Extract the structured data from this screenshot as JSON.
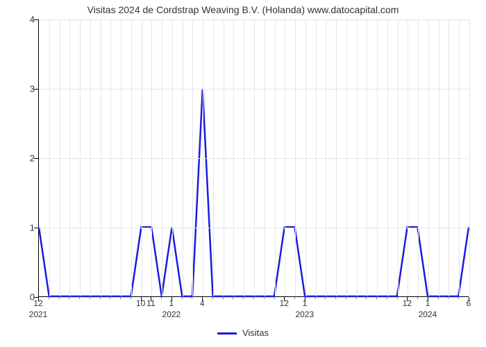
{
  "chart": {
    "type": "line",
    "title": "Visitas 2024 de Cordstrap Weaving B.V. (Holanda) www.datocapital.com",
    "title_fontsize": 14,
    "background_color": "#ffffff",
    "grid_color": "#e5e5e5",
    "axis_color": "#000000",
    "line_color": "#1a1adf",
    "line_width": 2.5,
    "y": {
      "min": 0,
      "max": 4,
      "ticks": [
        0,
        1,
        2,
        3,
        4
      ],
      "label_fontsize": 13
    },
    "x": {
      "n_minor": 42,
      "major_ticks": [
        {
          "idx": 0,
          "label": "12",
          "year": "2021"
        },
        {
          "idx": 10,
          "label": "10"
        },
        {
          "idx": 11,
          "label": "11"
        },
        {
          "idx": 13,
          "label": "1",
          "year": "2022"
        },
        {
          "idx": 16,
          "label": "4"
        },
        {
          "idx": 24,
          "label": "12"
        },
        {
          "idx": 26,
          "label": "1",
          "year": "2023"
        },
        {
          "idx": 36,
          "label": "12"
        },
        {
          "idx": 38,
          "label": "1",
          "year": "2024"
        },
        {
          "idx": 42,
          "label": "6"
        }
      ],
      "label_fontsize": 12
    },
    "series_y": [
      1,
      0,
      0,
      0,
      0,
      0,
      0,
      0,
      0,
      0,
      1,
      1,
      0,
      1,
      0,
      0,
      3,
      0,
      0,
      0,
      0,
      0,
      0,
      0,
      1,
      1,
      0,
      0,
      0,
      0,
      0,
      0,
      0,
      0,
      0,
      0,
      1,
      1,
      0,
      0,
      0,
      0,
      1
    ],
    "legend": {
      "label": "Visitas",
      "position": "bottom-center",
      "swatch_color": "#1a1adf"
    }
  }
}
